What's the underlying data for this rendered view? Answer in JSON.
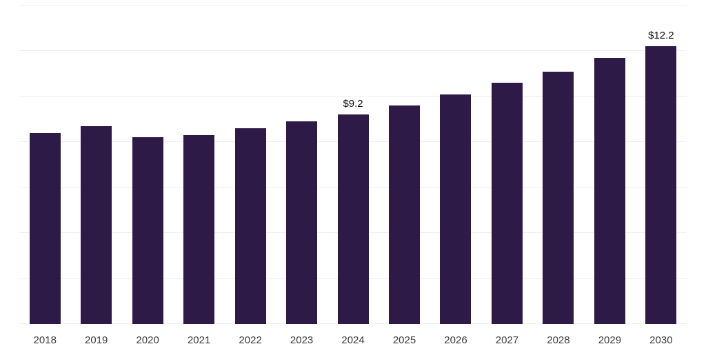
{
  "chart_data": {
    "type": "bar",
    "title": "",
    "xlabel": "",
    "ylabel": "",
    "categories": [
      "2018",
      "2019",
      "2020",
      "2021",
      "2022",
      "2023",
      "2024",
      "2025",
      "2026",
      "2027",
      "2028",
      "2029",
      "2030"
    ],
    "values": [
      8.4,
      8.7,
      8.2,
      8.3,
      8.6,
      8.9,
      9.2,
      9.6,
      10.1,
      10.6,
      11.1,
      11.7,
      12.2
    ],
    "data_labels": {
      "2024": "$9.2",
      "2030": "$12.2"
    },
    "ylim": [
      0,
      14
    ],
    "grid_step": 2,
    "grid": true,
    "legend": false,
    "bar_color": "#2e1a47",
    "grid_color": "#eeecf1",
    "value_label_color": "#111111",
    "axis_tick_color": "#3c3c3c",
    "background_color": "#ffffff"
  }
}
